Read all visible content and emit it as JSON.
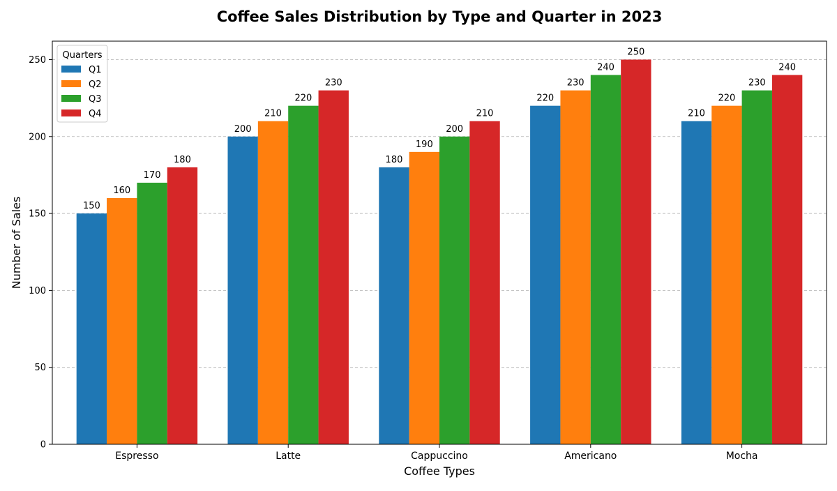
{
  "chart_data": {
    "type": "bar",
    "title": "Coffee Sales Distribution by Type and Quarter in 2023",
    "xlabel": "Coffee Types",
    "ylabel": "Number of Sales",
    "categories": [
      "Espresso",
      "Latte",
      "Cappuccino",
      "Americano",
      "Mocha"
    ],
    "series": [
      {
        "name": "Q1",
        "color": "#1f77b4",
        "values": [
          150,
          200,
          180,
          220,
          210
        ]
      },
      {
        "name": "Q2",
        "color": "#ff7f0e",
        "values": [
          160,
          210,
          190,
          230,
          220
        ]
      },
      {
        "name": "Q3",
        "color": "#2ca02c",
        "values": [
          170,
          220,
          200,
          240,
          230
        ]
      },
      {
        "name": "Q4",
        "color": "#d62728",
        "values": [
          180,
          230,
          210,
          250,
          240
        ]
      }
    ],
    "ylim": [
      0,
      262
    ],
    "yticks": [
      0,
      50,
      100,
      150,
      200,
      250
    ],
    "grid": "y-dashed",
    "legend": {
      "title": "Quarters",
      "placement": "top-left"
    }
  }
}
